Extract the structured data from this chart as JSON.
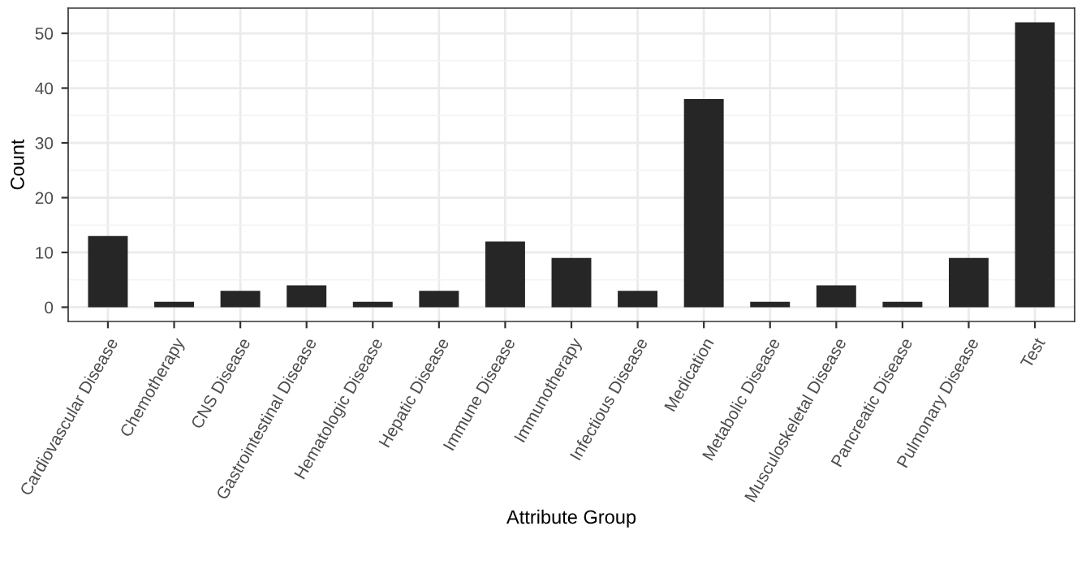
{
  "chart_data": {
    "type": "bar",
    "xlabel": "Attribute Group",
    "ylabel": "Count",
    "categories": [
      "Cardiovascular Disease",
      "Chemotherapy",
      "CNS Disease",
      "Gastrointestinal Disease",
      "Hematologic Disease",
      "Hepatic Disease",
      "Immune Disease",
      "Immunotherapy",
      "Infectious Disease",
      "Medication",
      "Metabolic Disease",
      "Musculoskeletal Disease",
      "Pancreatic Disease",
      "Pulmonary Disease",
      "Test"
    ],
    "values": [
      13,
      1,
      3,
      4,
      1,
      3,
      12,
      9,
      3,
      38,
      1,
      4,
      1,
      9,
      52
    ],
    "color": "#262626",
    "ylim": [
      -2.6,
      54.6
    ],
    "yticks": [
      0,
      10,
      20,
      30,
      40,
      50
    ],
    "grid": true
  }
}
